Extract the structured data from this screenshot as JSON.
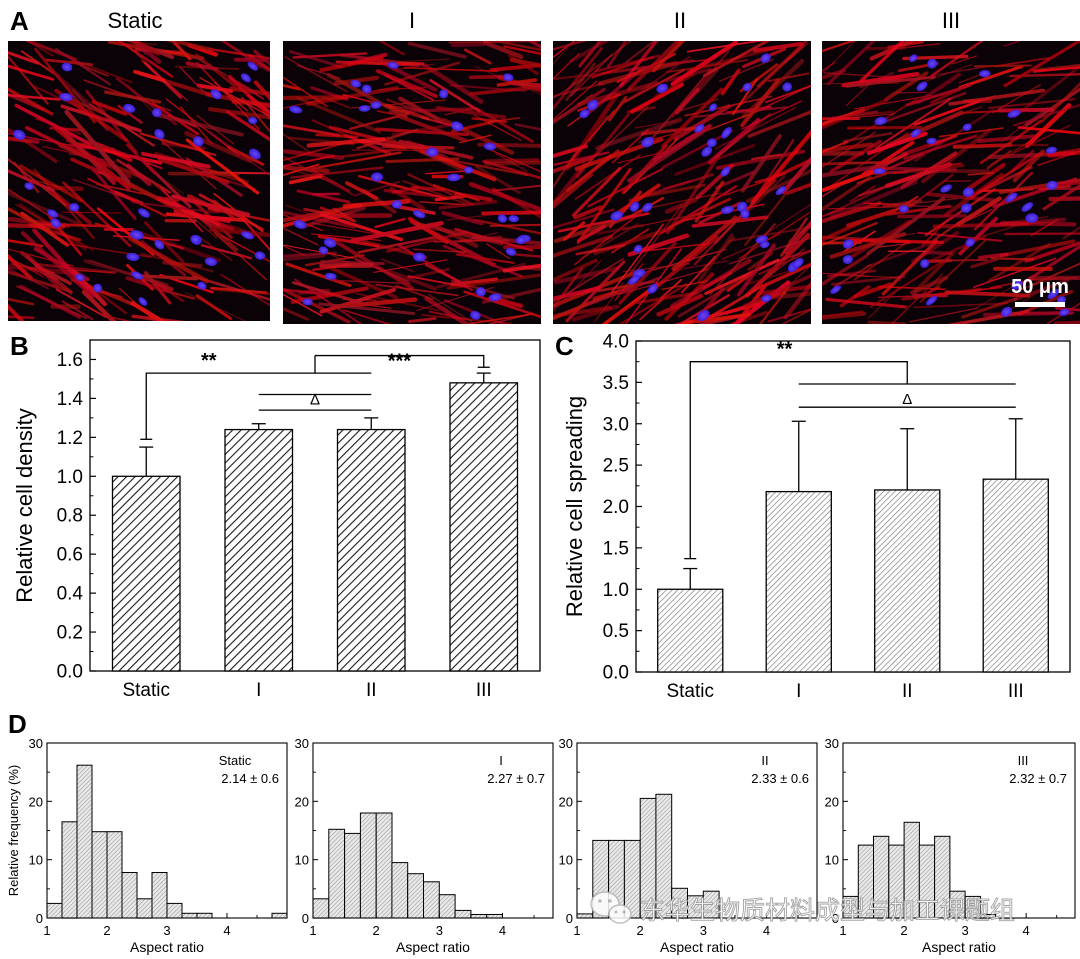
{
  "panelA": {
    "letter": "A",
    "conditions": [
      "Static",
      "I",
      "II",
      "III"
    ],
    "scale_bar": "50 μm",
    "colors": {
      "actin": "#c80f1c",
      "nuclei": "#4a22ff",
      "background": "#0a0206"
    }
  },
  "panelB": {
    "letter": "B",
    "chart_data": {
      "type": "bar",
      "categories": [
        "Static",
        "I",
        "II",
        "III"
      ],
      "values": [
        1.0,
        1.24,
        1.24,
        1.48
      ],
      "errors": [
        0.15,
        0.03,
        0.06,
        0.05
      ],
      "ylabel": "Relative cell density",
      "xlabel": "",
      "ylim": [
        0.0,
        1.7
      ],
      "yticks": [
        0.0,
        0.2,
        0.4,
        0.6,
        0.8,
        1.0,
        1.2,
        1.4,
        1.6
      ],
      "tick_decimals": 1,
      "annotations": [
        {
          "label": "**",
          "note": "Static vs I/II"
        },
        {
          "label": "***",
          "note": "I/II vs III"
        },
        {
          "label": "Δ",
          "note": "I vs II"
        }
      ]
    }
  },
  "panelC": {
    "letter": "C",
    "chart_data": {
      "type": "bar",
      "categories": [
        "Static",
        "I",
        "II",
        "III"
      ],
      "values": [
        1.0,
        2.18,
        2.2,
        2.33
      ],
      "errors": [
        0.25,
        0.85,
        0.74,
        0.73
      ],
      "ylabel": "Relative cell spreading",
      "xlabel": "",
      "ylim": [
        0.0,
        4.0
      ],
      "yticks": [
        0.0,
        0.5,
        1.0,
        1.5,
        2.0,
        2.5,
        3.0,
        3.5,
        4.0
      ],
      "tick_decimals": 1,
      "annotations": [
        {
          "label": "**",
          "note": "Static vs I/II/III"
        },
        {
          "label": "Δ",
          "note": "I vs II vs III"
        }
      ]
    }
  },
  "panelD": {
    "letter": "D",
    "chart_data": [
      {
        "type": "bar",
        "title": "Static",
        "stat": "2.14 ± 0.6",
        "x": [
          1.125,
          1.375,
          1.625,
          1.875,
          2.125,
          2.375,
          2.625,
          2.875,
          3.125,
          3.375,
          3.625,
          3.875,
          4.125,
          4.375,
          4.625,
          4.875
        ],
        "values": [
          2.5,
          16.5,
          26.2,
          14.8,
          14.8,
          7.8,
          3.3,
          7.8,
          2.5,
          0.8,
          0.8,
          0,
          0,
          0,
          0,
          0.8
        ],
        "xlabel": "Aspect ratio",
        "ylabel": "Relative frequency (%)",
        "xlim": [
          1,
          5
        ],
        "ylim": [
          0,
          30
        ],
        "xticks": [
          1,
          2,
          3,
          4
        ],
        "yticks": [
          0,
          10,
          20,
          30
        ]
      },
      {
        "type": "bar",
        "title": "I",
        "stat": "2.27 ± 0.7",
        "x": [
          1.125,
          1.375,
          1.625,
          1.875,
          2.125,
          2.375,
          2.625,
          2.875,
          3.125,
          3.375,
          3.625,
          3.875,
          4.125,
          4.375
        ],
        "values": [
          3.3,
          15.2,
          14.5,
          18.0,
          18.0,
          9.5,
          7.6,
          6.2,
          4.0,
          1.3,
          0.6,
          0.6,
          0,
          0
        ],
        "xlabel": "Aspect ratio",
        "ylabel": "",
        "xlim": [
          1,
          4.8
        ],
        "ylim": [
          0,
          30
        ],
        "xticks": [
          1,
          2,
          3,
          4
        ],
        "yticks": [
          0,
          10,
          20,
          30
        ]
      },
      {
        "type": "bar",
        "title": "II",
        "stat": "2.33 ± 0.6",
        "x": [
          1.125,
          1.375,
          1.625,
          1.875,
          2.125,
          2.375,
          2.625,
          2.875,
          3.125,
          3.375,
          3.625
        ],
        "values": [
          0.7,
          13.3,
          13.3,
          13.3,
          20.5,
          21.2,
          5.1,
          3.8,
          4.6,
          0,
          0
        ],
        "xlabel": "Aspect ratio",
        "ylabel": "",
        "xlim": [
          1,
          4.8
        ],
        "ylim": [
          0,
          30
        ],
        "xticks": [
          1,
          2,
          3,
          4
        ],
        "yticks": [
          0,
          10,
          20,
          30
        ]
      },
      {
        "type": "bar",
        "title": "III",
        "stat": "2.32 ± 0.7",
        "x": [
          1.125,
          1.375,
          1.625,
          1.875,
          2.125,
          2.375,
          2.625,
          2.875,
          3.125,
          3.375,
          3.625,
          3.875
        ],
        "values": [
          3.7,
          12.5,
          14.0,
          12.5,
          16.4,
          12.5,
          14.0,
          4.6,
          3.7,
          0.6,
          0,
          0
        ],
        "xlabel": "Aspect ratio",
        "ylabel": "",
        "xlim": [
          1,
          4.8
        ],
        "ylim": [
          0,
          30
        ],
        "xticks": [
          1,
          2,
          3,
          4
        ],
        "yticks": [
          0,
          10,
          20,
          30
        ]
      }
    ]
  },
  "watermark": {
    "text": "东华生物质材料成型与加工课题组"
  }
}
